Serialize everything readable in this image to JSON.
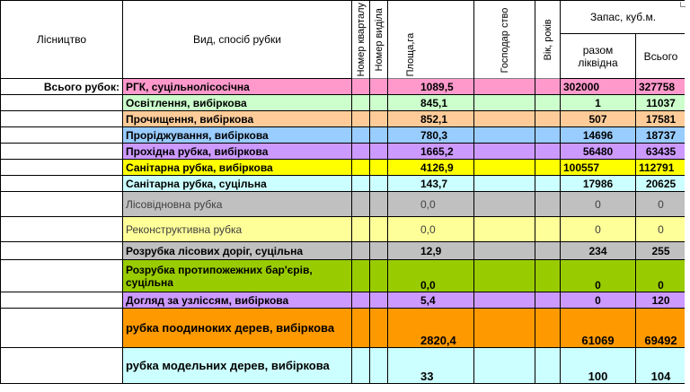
{
  "header": {
    "forestry": "Лісництво",
    "type_method": "Вид, спосіб рубки",
    "block_no": "Номер кварталу",
    "section_no": "Номер виділа",
    "area": "Площа,га",
    "farm": "Господар ство",
    "age": "Вік, років",
    "stock": "Запас, куб.м.",
    "liquid": "разом ліквідна",
    "total": "Всього"
  },
  "rows": [
    {
      "forestry": "Всього рубок:",
      "type": "РГК, суцільнолісосічна",
      "area": "1089,5",
      "liquid": "302000",
      "total": "327758",
      "color": "#ff99cc"
    },
    {
      "forestry": "",
      "type": "Освітлення, вибіркова",
      "area": "845,1",
      "liquid": "1",
      "total": "11037",
      "color": "#ccffcc"
    },
    {
      "forestry": "",
      "type": "Прочищення, вибіркова",
      "area": "852,1",
      "liquid": "507",
      "total": "17581",
      "color": "#ffcc99"
    },
    {
      "forestry": "",
      "type": "Проріджування, вибіркова",
      "area": "780,3",
      "liquid": "14696",
      "total": "18737",
      "color": "#99ccff"
    },
    {
      "forestry": "",
      "type": "Прохідна рубка, вибіркова",
      "area": "1665,2",
      "liquid": "56480",
      "total": "63435",
      "color": "#cc99ff"
    },
    {
      "forestry": "",
      "type": "Санітарна рубка, вибіркова",
      "area": "4126,9",
      "liquid": "100557",
      "total": "112791",
      "color": "#ffff00"
    },
    {
      "forestry": "",
      "type": "Санітарна рубка, суцільна",
      "area": "143,7",
      "liquid": "17986",
      "total": "20625",
      "color": "#ccffff"
    },
    {
      "forestry": "",
      "type": "Лісовідновна рубка",
      "area": "0,0",
      "liquid": "0",
      "total": "0",
      "color": "#c0c0c0"
    },
    {
      "forestry": "",
      "type": "Реконструктивна рубка",
      "area": "0,0",
      "liquid": "0",
      "total": "0",
      "color": "#ffff99"
    },
    {
      "forestry": "",
      "type": "Розрубка лісових доріг, суцільна",
      "area": "12,9",
      "liquid": "234",
      "total": "255",
      "color": "#c0c0c0"
    },
    {
      "forestry": "",
      "type": "Розрубка протипожежних бар'єрів, суцільна",
      "area": "0,0",
      "liquid": "0",
      "total": "0",
      "color": "#99cc00"
    },
    {
      "forestry": "",
      "type": "Догляд за узліссям, вибіркова",
      "area": "5,4",
      "liquid": "0",
      "total": "120",
      "color": "#cc99ff"
    },
    {
      "forestry": "",
      "type": "рубка поодиноких дерев, вибіркова",
      "area": "2820,4",
      "liquid": "61069",
      "total": "69492",
      "color": "#ff9900"
    },
    {
      "forestry": "",
      "type": "рубка модельних дерев, вибіркова",
      "area": "33",
      "liquid": "100",
      "total": "104",
      "color": "#ccffff"
    }
  ]
}
